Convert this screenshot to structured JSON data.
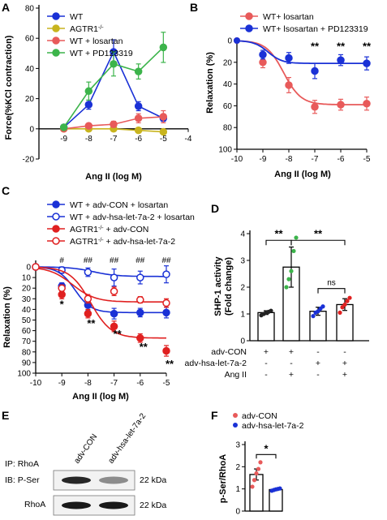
{
  "panels": [
    {
      "label": "A"
    },
    {
      "label": "B"
    },
    {
      "label": "C"
    },
    {
      "label": "D"
    },
    {
      "label": "E"
    },
    {
      "label": "F"
    }
  ],
  "chart_data": [
    {
      "id": "A",
      "type": "line",
      "xlabel": "Ang II  (log M)",
      "ylabel": "Force(%KCl contraction)",
      "xlim": [
        -10,
        -4
      ],
      "ylim": [
        -20,
        80
      ],
      "xticks": [
        -9,
        -8,
        -7,
        -6,
        -5,
        -4
      ],
      "yticks": [
        -20,
        0,
        20,
        40,
        60,
        80
      ],
      "legend_position": "top-left",
      "x": [
        -9,
        -8,
        -7,
        -6,
        -5
      ],
      "series": [
        {
          "name": "WT",
          "color": "#1a31d6",
          "values": [
            1,
            16,
            51,
            15,
            7
          ],
          "err": [
            0,
            3,
            8,
            3,
            2
          ]
        },
        {
          "name": "AGTR1",
          "name_sup": "-/-",
          "color": "#c8b41e",
          "values": [
            0,
            0,
            0,
            -1,
            -2
          ],
          "err": [
            0,
            0,
            0,
            1,
            1
          ]
        },
        {
          "name": "WT + losartan",
          "color": "#e85a5a",
          "values": [
            0,
            2,
            3,
            7,
            8
          ],
          "err": [
            0,
            1,
            2,
            3,
            4
          ]
        },
        {
          "name": "WT + PD123319",
          "color": "#3cb44b",
          "values": [
            1,
            25,
            43,
            38,
            54
          ],
          "err": [
            1,
            6,
            8,
            5,
            10
          ]
        }
      ]
    },
    {
      "id": "B",
      "type": "line",
      "xlabel": "Ang II  (log M)",
      "ylabel": "Relaxation (%)",
      "y_inverted": true,
      "xlim": [
        -10,
        -5
      ],
      "ylim": [
        0,
        100
      ],
      "xticks": [
        -10,
        -9,
        -8,
        -7,
        -6,
        -5
      ],
      "yticks": [
        0,
        20,
        40,
        60,
        80,
        100
      ],
      "legend_position": "top",
      "x": [
        -9,
        -8,
        -7,
        -6,
        -5
      ],
      "series": [
        {
          "name": "WT+ losartan",
          "color": "#e85a5a",
          "values": [
            20,
            41,
            61,
            59,
            58
          ],
          "err": [
            5,
            7,
            6,
            5,
            6
          ]
        },
        {
          "name": "WT+ lsosartan + PD123319",
          "color": "#1a31d6",
          "values": [
            13,
            16,
            28,
            18,
            21
          ],
          "err": [
            4,
            5,
            7,
            5,
            6
          ]
        }
      ],
      "annotations": [
        {
          "x": -7,
          "text": "**"
        },
        {
          "x": -6,
          "text": "**"
        },
        {
          "x": -5,
          "text": "**"
        }
      ]
    },
    {
      "id": "C",
      "type": "line",
      "xlabel": "Ang II  (log M)",
      "ylabel": "Relaxation (%)",
      "y_inverted": true,
      "xlim": [
        -10,
        -5
      ],
      "ylim": [
        0,
        100
      ],
      "xticks": [
        -10,
        -9,
        -8,
        -7,
        -6,
        -5
      ],
      "yticks": [
        0,
        10,
        20,
        30,
        40,
        50,
        60,
        70,
        80,
        90,
        100
      ],
      "legend_position": "top",
      "x": [
        -9,
        -8,
        -7,
        -6,
        -5
      ],
      "series": [
        {
          "name": "WT + adv-CON + losartan",
          "color": "#1a31d6",
          "open": false,
          "values": [
            18,
            36,
            44,
            43,
            43
          ],
          "err": [
            3,
            5,
            5,
            4,
            5
          ]
        },
        {
          "name": "WT + adv-hsa-let-7a-2 + losartan",
          "color": "#1a31d6",
          "open": true,
          "values": [
            3,
            5,
            10,
            10,
            7
          ],
          "err": [
            3,
            4,
            8,
            6,
            8
          ]
        },
        {
          "name": "AGTR1",
          "name_sup": "-/-",
          "name_tail": " + adv-CON",
          "color": "#e02020",
          "open": false,
          "values": [
            26,
            44,
            56,
            67,
            79
          ],
          "err": [
            4,
            4,
            5,
            4,
            5
          ]
        },
        {
          "name": "AGTR1",
          "name_sup": "-/-",
          "name_tail": " + adv-hsa-let-7a-2",
          "color": "#e02020",
          "open": true,
          "values": [
            20,
            30,
            23,
            31,
            34
          ],
          "err": [
            3,
            4,
            4,
            3,
            4
          ]
        }
      ],
      "annotations_top": [
        {
          "x": -9,
          "text": "#"
        },
        {
          "x": -8,
          "text": "##"
        },
        {
          "x": -7,
          "text": "##"
        },
        {
          "x": -6,
          "text": "##"
        },
        {
          "x": -5,
          "text": "##"
        }
      ],
      "annotations_bottom": [
        {
          "x": -9,
          "text": "*"
        },
        {
          "x": -8,
          "text": "**"
        },
        {
          "x": -7,
          "text": "**"
        },
        {
          "x": -6,
          "text": "**"
        },
        {
          "x": -5,
          "text": "**"
        }
      ]
    },
    {
      "id": "D",
      "type": "bar",
      "ylabel": "SHP-1 activity",
      "ylabel2": "(Fold change)",
      "ylim": [
        0,
        4
      ],
      "yticks": [
        0,
        1,
        2,
        3,
        4
      ],
      "groups": [
        {
          "mean": 1.05,
          "err": 0.07,
          "points": [
            0.95,
            1.0,
            1.05,
            1.08,
            1.12
          ],
          "dot": "#222222"
        },
        {
          "mean": 2.75,
          "err": 0.75,
          "points": [
            2.0,
            2.3,
            2.6,
            3.35,
            3.85
          ],
          "dot": "#3cb44b"
        },
        {
          "mean": 1.1,
          "err": 0.15,
          "points": [
            0.92,
            1.05,
            1.1,
            1.2,
            1.28
          ],
          "dot": "#1a31d6"
        },
        {
          "mean": 1.35,
          "err": 0.22,
          "points": [
            1.05,
            1.25,
            1.35,
            1.48,
            1.6
          ],
          "dot": "#e02020"
        }
      ],
      "conditions": [
        {
          "label": "adv-CON",
          "signs": [
            "+",
            "+",
            "-",
            "-"
          ]
        },
        {
          "label": "adv-hsa-let-7a-2",
          "signs": [
            "-",
            "-",
            "+",
            "+"
          ]
        },
        {
          "label": "Ang II",
          "signs": [
            "-",
            "+",
            "-",
            "+"
          ]
        }
      ],
      "brackets": [
        {
          "from": 0,
          "to": 1,
          "text": "**",
          "level": 3.75
        },
        {
          "from": 1,
          "to": 3,
          "text": "**",
          "level": 3.75
        },
        {
          "from": 2,
          "to": 3,
          "text": "ns",
          "level": 1.95
        }
      ]
    },
    {
      "id": "F",
      "type": "bar",
      "ylabel": "p-Ser/RhoA",
      "ylim": [
        0,
        3
      ],
      "yticks": [
        0,
        1,
        2,
        3
      ],
      "legend": [
        {
          "name": "adv-CON",
          "color": "#e85a5a"
        },
        {
          "name": "adv-hsa-let-7a-2",
          "color": "#1a31d6"
        }
      ],
      "groups": [
        {
          "mean": 1.65,
          "err": 0.25,
          "points": [
            1.1,
            1.4,
            1.7,
            1.9,
            2.2
          ],
          "dot": "#e85a5a"
        },
        {
          "mean": 0.97,
          "err": 0.04,
          "points": [
            0.92,
            0.95,
            0.98,
            1.0,
            1.02
          ],
          "dot": "#1a31d6"
        }
      ],
      "brackets": [
        {
          "from": 0,
          "to": 1,
          "text": "*"
        }
      ]
    }
  ],
  "blot": {
    "lanes": [
      "adv-CON",
      "adv-hsa-let-7a-2"
    ],
    "ip_label": "IP: RhoA",
    "rows": [
      {
        "label": "IB: P-Ser",
        "size": "22 kDa",
        "intensity": [
          0.85,
          0.45
        ]
      },
      {
        "label": "RhoA",
        "size": "22 kDa",
        "intensity": [
          0.9,
          0.9
        ]
      }
    ]
  }
}
